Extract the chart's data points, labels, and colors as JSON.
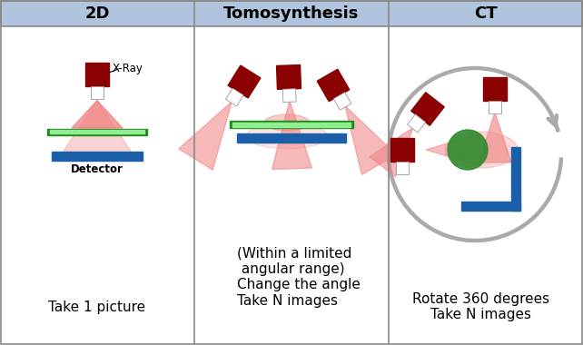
{
  "bg_color": "#ffffff",
  "header_bg": "#b0c4de",
  "header_text_color": "#000000",
  "border_color": "#888888",
  "headers": [
    "2D",
    "Tomosynthesis",
    "CT"
  ],
  "col_labels": [
    "Take 1 picture",
    "(Within a limited\n angular range)\nChange the angle\nTake N images",
    "Rotate 360 degrees\nTake N images"
  ],
  "xray_dark_red": "#8b0000",
  "beam_red": "#f08080",
  "detector_blue": "#1a5fa8",
  "table_green": "#228b22",
  "table_light_green": "#90ee90",
  "arrow_gray": "#aaaaaa",
  "label_fontsize": 11,
  "header_fontsize": 13
}
